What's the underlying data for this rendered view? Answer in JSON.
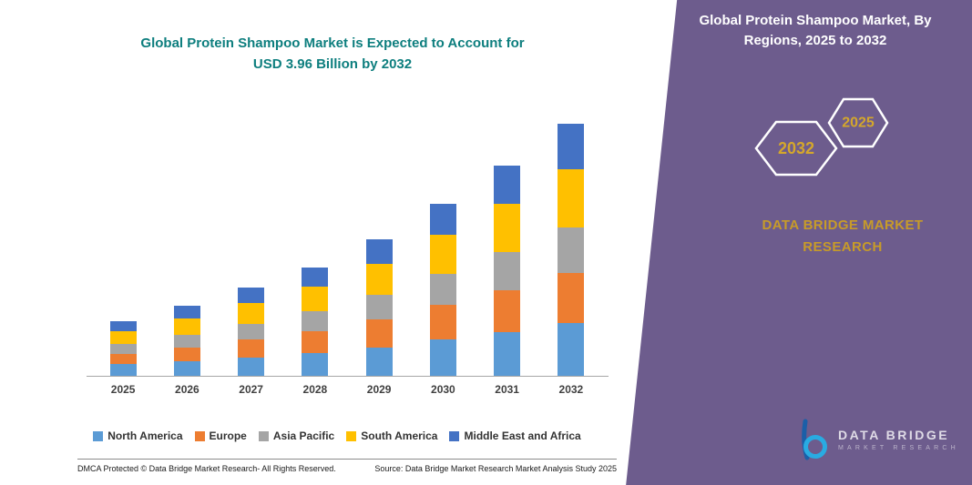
{
  "left": {
    "title_line1": "Global Protein Shampoo Market is Expected to Account for",
    "title_line2": "USD 3.96 Billion by 2032",
    "footer_left": "DMCA Protected © Data Bridge Market Research-  All Rights Reserved.",
    "footer_right": "Source: Data Bridge Market Research  Market Analysis Study 2025"
  },
  "right_panel": {
    "title": "Global Protein Shampoo Market, By Regions, 2025 to 2032",
    "badge_back": "2032",
    "badge_front": "2025",
    "brand_line1": "DATA BRIDGE MARKET",
    "brand_line2": "RESEARCH",
    "logo_line1": "DATA BRIDGE",
    "logo_line2": "MARKET RESEARCH",
    "panel_color": "#6d5c8d",
    "accent_gold": "#c79b29"
  },
  "chart_data": {
    "type": "bar",
    "stacked": true,
    "title": "Global Protein Shampoo Market is Expected to Account for USD 3.96 Billion by 2032",
    "unit": "USD Billion",
    "categories": [
      "2025",
      "2026",
      "2027",
      "2028",
      "2029",
      "2030",
      "2031",
      "2032"
    ],
    "series": [
      {
        "name": "North America",
        "color": "#5B9BD5",
        "values": [
          0.18,
          0.23,
          0.29,
          0.36,
          0.45,
          0.57,
          0.69,
          0.83
        ]
      },
      {
        "name": "Europe",
        "color": "#ED7D31",
        "values": [
          0.17,
          0.22,
          0.28,
          0.34,
          0.43,
          0.54,
          0.66,
          0.79
        ]
      },
      {
        "name": "Asia Pacific",
        "color": "#A5A5A5",
        "values": [
          0.15,
          0.2,
          0.25,
          0.31,
          0.39,
          0.49,
          0.59,
          0.71
        ]
      },
      {
        "name": "South America",
        "color": "#FFC000",
        "values": [
          0.2,
          0.25,
          0.32,
          0.39,
          0.49,
          0.62,
          0.76,
          0.91
        ]
      },
      {
        "name": "Middle East and Africa",
        "color": "#4472C4",
        "values": [
          0.16,
          0.2,
          0.24,
          0.3,
          0.39,
          0.48,
          0.6,
          0.72
        ]
      }
    ],
    "totals": [
      0.86,
      1.1,
      1.38,
      1.7,
      2.15,
      2.7,
      3.3,
      3.96
    ],
    "ylim": [
      0,
      4.2
    ],
    "grid": false,
    "legend_position": "bottom"
  }
}
